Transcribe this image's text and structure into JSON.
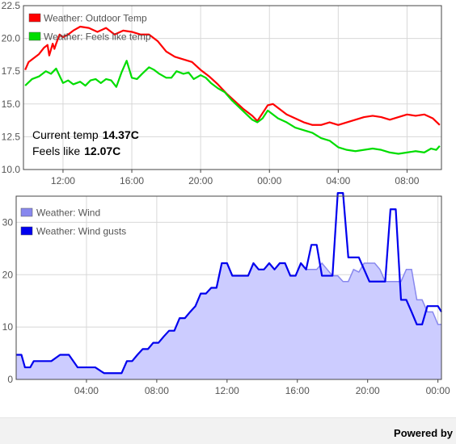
{
  "chart_data": [
    {
      "type": "line",
      "x_tick_labels": [
        "12:00",
        "16:00",
        "20:00",
        "00:00",
        "04:00",
        "08:00"
      ],
      "x_tick_hours": [
        12,
        16,
        20,
        24,
        28,
        32
      ],
      "xlim_hours": [
        9.7,
        34.0
      ],
      "ylim": [
        10.0,
        22.5
      ],
      "y_ticks": [
        "10.0",
        "12.5",
        "15.0",
        "17.5",
        "20.0",
        "22.5"
      ],
      "grid": true,
      "legend_position": "top-left",
      "readout": {
        "current_label": "Current temp",
        "current_value": "14.37C",
        "feels_label": "Feels like",
        "feels_value": "12.07C"
      },
      "series": [
        {
          "name": "Weather: Outdoor Temp",
          "color": "#ff0000",
          "x": [
            9.8,
            10.0,
            10.3,
            10.6,
            10.9,
            11.1,
            11.2,
            11.4,
            11.5,
            11.6,
            11.8,
            12.0,
            12.3,
            12.6,
            13.0,
            13.5,
            14.0,
            14.5,
            15.0,
            15.5,
            16.0,
            16.5,
            17.0,
            17.5,
            18.0,
            18.5,
            19.0,
            19.5,
            20.0,
            20.5,
            21.0,
            21.5,
            22.0,
            22.5,
            23.0,
            23.3,
            23.6,
            23.9,
            24.2,
            24.5,
            25.0,
            25.5,
            26.0,
            26.5,
            27.0,
            27.5,
            28.0,
            28.5,
            29.0,
            29.5,
            30.0,
            30.5,
            31.0,
            31.5,
            32.0,
            32.5,
            33.0,
            33.5,
            33.9
          ],
          "values": [
            17.6,
            18.2,
            18.5,
            18.8,
            19.3,
            19.5,
            18.7,
            19.6,
            19.2,
            19.6,
            20.3,
            20.1,
            20.3,
            20.6,
            20.9,
            20.8,
            20.5,
            20.8,
            20.3,
            20.6,
            20.5,
            20.3,
            20.3,
            19.8,
            19.0,
            18.6,
            18.4,
            18.2,
            17.6,
            17.1,
            16.5,
            15.8,
            15.2,
            14.6,
            14.1,
            13.7,
            14.3,
            14.9,
            15.0,
            14.7,
            14.2,
            13.9,
            13.6,
            13.4,
            13.4,
            13.6,
            13.4,
            13.6,
            13.8,
            14.0,
            14.1,
            14.0,
            13.8,
            14.0,
            14.2,
            14.1,
            14.2,
            13.9,
            13.4
          ]
        },
        {
          "name": "Weather: Feels like temp",
          "color": "#00dd00",
          "x": [
            9.8,
            10.2,
            10.6,
            11.0,
            11.3,
            11.6,
            12.0,
            12.3,
            12.6,
            13.0,
            13.3,
            13.6,
            13.9,
            14.2,
            14.5,
            14.8,
            15.1,
            15.4,
            15.7,
            16.0,
            16.3,
            16.6,
            17.0,
            17.3,
            17.6,
            18.0,
            18.3,
            18.6,
            19.0,
            19.3,
            19.6,
            20.0,
            20.3,
            20.6,
            21.0,
            21.4,
            21.8,
            22.2,
            22.6,
            23.0,
            23.3,
            23.6,
            23.9,
            24.2,
            24.5,
            25.0,
            25.5,
            26.0,
            26.5,
            27.0,
            27.5,
            28.0,
            28.5,
            29.0,
            29.5,
            30.0,
            30.5,
            31.0,
            31.5,
            32.0,
            32.5,
            33.0,
            33.4,
            33.7,
            33.9
          ],
          "values": [
            16.4,
            16.9,
            17.1,
            17.5,
            17.3,
            17.7,
            16.6,
            16.8,
            16.5,
            16.7,
            16.4,
            16.8,
            16.9,
            16.6,
            16.9,
            16.8,
            16.3,
            17.4,
            18.3,
            17.0,
            16.9,
            17.3,
            17.8,
            17.6,
            17.3,
            17.0,
            17.0,
            17.5,
            17.3,
            17.4,
            16.9,
            17.2,
            17.0,
            16.6,
            16.2,
            15.9,
            15.3,
            14.8,
            14.3,
            13.8,
            13.6,
            13.9,
            14.5,
            14.2,
            13.9,
            13.6,
            13.2,
            13.0,
            12.8,
            12.4,
            12.2,
            11.7,
            11.5,
            11.4,
            11.5,
            11.6,
            11.5,
            11.3,
            11.2,
            11.3,
            11.4,
            11.3,
            11.6,
            11.5,
            11.8
          ]
        }
      ]
    },
    {
      "type": "area",
      "x_tick_labels": [
        "04:00",
        "08:00",
        "12:00",
        "16:00",
        "20:00",
        "00:00"
      ],
      "x_tick_hours": [
        28,
        32,
        36,
        40,
        44,
        48
      ],
      "xlim_hours": [
        24.0,
        48.2
      ],
      "ylim": [
        0,
        35
      ],
      "y_ticks": [
        "0",
        "10",
        "20",
        "30"
      ],
      "grid": true,
      "legend_position": "top-left",
      "series": [
        {
          "name": "Weather: Wind",
          "color": "#8888ee",
          "fill": "#ccccff",
          "x": [
            24.0,
            24.3,
            24.5,
            24.8,
            25.0,
            25.5,
            26.0,
            26.5,
            27.0,
            27.5,
            28.0,
            28.5,
            29.0,
            29.5,
            30.0,
            30.3,
            30.6,
            30.9,
            31.2,
            31.5,
            31.8,
            32.1,
            32.4,
            32.7,
            33.0,
            33.3,
            33.6,
            33.9,
            34.2,
            34.5,
            34.8,
            35.1,
            35.4,
            35.7,
            36.0,
            36.3,
            36.6,
            36.9,
            37.2,
            37.5,
            37.8,
            38.1,
            38.4,
            38.7,
            39.0,
            39.3,
            39.6,
            39.9,
            40.2,
            40.5,
            40.8,
            41.1,
            41.4,
            41.7,
            42.0,
            42.3,
            42.6,
            42.9,
            43.2,
            43.5,
            43.8,
            44.1,
            44.4,
            44.7,
            45.0,
            45.3,
            45.6,
            45.9,
            46.2,
            46.5,
            46.8,
            47.1,
            47.4,
            47.7,
            48.0,
            48.2
          ],
          "values": [
            4.7,
            4.7,
            2.3,
            2.3,
            3.5,
            3.5,
            3.5,
            4.7,
            4.7,
            2.3,
            2.3,
            2.3,
            1.2,
            1.2,
            1.2,
            3.5,
            3.5,
            4.7,
            5.8,
            5.8,
            7.0,
            7.0,
            8.2,
            9.3,
            9.3,
            11.7,
            11.7,
            12.9,
            14.0,
            16.4,
            16.4,
            17.5,
            17.5,
            22.2,
            22.2,
            19.8,
            19.8,
            19.8,
            19.8,
            22.2,
            21.0,
            21.0,
            22.2,
            21.0,
            22.2,
            22.2,
            19.8,
            19.8,
            22.2,
            21.0,
            21.0,
            21.0,
            22.2,
            21.0,
            19.8,
            19.8,
            18.7,
            18.7,
            21.0,
            20.5,
            22.2,
            22.2,
            22.2,
            21.0,
            18.7,
            18.7,
            18.7,
            18.7,
            21.0,
            21.0,
            15.2,
            15.2,
            12.9,
            12.9,
            10.5,
            10.5
          ]
        },
        {
          "name": "Weather: Wind gusts",
          "color": "#0000ee",
          "x": [
            24.0,
            24.3,
            24.5,
            24.8,
            25.0,
            25.5,
            26.0,
            26.5,
            27.0,
            27.5,
            28.0,
            28.5,
            29.0,
            29.5,
            30.0,
            30.3,
            30.6,
            30.9,
            31.2,
            31.5,
            31.8,
            32.1,
            32.4,
            32.7,
            33.0,
            33.3,
            33.6,
            33.9,
            34.2,
            34.5,
            34.8,
            35.1,
            35.4,
            35.7,
            36.0,
            36.3,
            36.6,
            36.9,
            37.2,
            37.5,
            37.8,
            38.1,
            38.4,
            38.7,
            39.0,
            39.3,
            39.6,
            39.9,
            40.2,
            40.5,
            40.8,
            41.1,
            41.4,
            41.7,
            42.0,
            42.3,
            42.6,
            42.9,
            43.2,
            43.5,
            43.8,
            44.1,
            44.4,
            44.7,
            45.0,
            45.3,
            45.6,
            45.9,
            46.2,
            46.5,
            46.8,
            47.1,
            47.4,
            47.7,
            48.0,
            48.2
          ],
          "values": [
            4.7,
            4.7,
            2.3,
            2.3,
            3.5,
            3.5,
            3.5,
            4.7,
            4.7,
            2.3,
            2.3,
            2.3,
            1.2,
            1.2,
            1.2,
            3.5,
            3.5,
            4.7,
            5.8,
            5.8,
            7.0,
            7.0,
            8.2,
            9.3,
            9.3,
            11.7,
            11.7,
            12.9,
            14.0,
            16.4,
            16.4,
            17.5,
            17.5,
            22.2,
            22.2,
            19.8,
            19.8,
            19.8,
            19.8,
            22.2,
            21.0,
            21.0,
            22.2,
            21.0,
            22.2,
            22.2,
            19.8,
            19.8,
            22.2,
            21.0,
            25.7,
            25.7,
            19.8,
            19.8,
            19.8,
            35.6,
            35.6,
            23.3,
            23.3,
            23.3,
            21.0,
            18.7,
            18.7,
            18.7,
            18.7,
            32.5,
            32.5,
            15.2,
            15.2,
            12.9,
            10.5,
            10.5,
            14.0,
            14.0,
            14.0,
            12.9
          ]
        }
      ]
    }
  ],
  "footer": {
    "powered_label": "Powered by"
  }
}
